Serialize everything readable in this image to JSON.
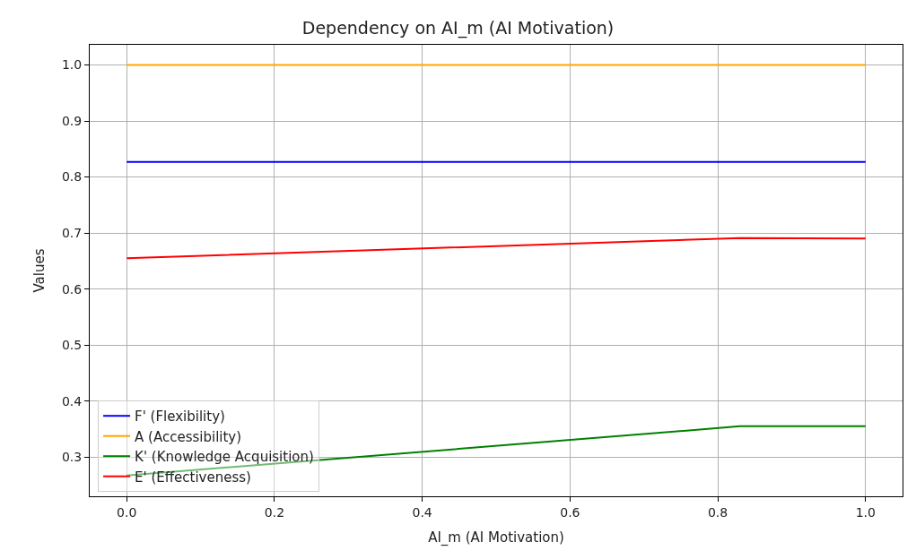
{
  "chart_data": {
    "type": "line",
    "title": "Dependency on AI_m (AI Motivation)",
    "xlabel": "AI_m (AI Motivation)",
    "ylabel": "Values",
    "x": [
      0,
      0.83,
      1.0
    ],
    "series": [
      {
        "name": "F' (Flexibility)",
        "color": "#0000ff",
        "values": [
          0.827,
          0.827,
          0.827
        ]
      },
      {
        "name": "A (Accessibility)",
        "color": "#ffa500",
        "values": [
          1.0,
          1.0,
          1.0
        ]
      },
      {
        "name": "K' (Knowledge Acquisition)",
        "color": "#008000",
        "values": [
          0.267,
          0.355,
          0.355
        ]
      },
      {
        "name": "E' (Effectiveness)",
        "color": "#ff0000",
        "values": [
          0.655,
          0.691,
          0.69
        ]
      }
    ],
    "xlim": [
      -0.05,
      1.05
    ],
    "ylim": [
      0.23,
      1.036
    ],
    "xticks": [
      {
        "value": 0,
        "label": "0.0"
      },
      0.2,
      0.4,
      0.6,
      0.8,
      {
        "value": 1,
        "label": "1.0"
      }
    ],
    "yticks": [
      0.3,
      0.4,
      0.5,
      0.6,
      0.7,
      0.8,
      0.9,
      {
        "value": 1,
        "label": "1.0"
      }
    ],
    "grid": true,
    "legend": "bottom left",
    "marker": "none",
    "line_style": "solid"
  }
}
